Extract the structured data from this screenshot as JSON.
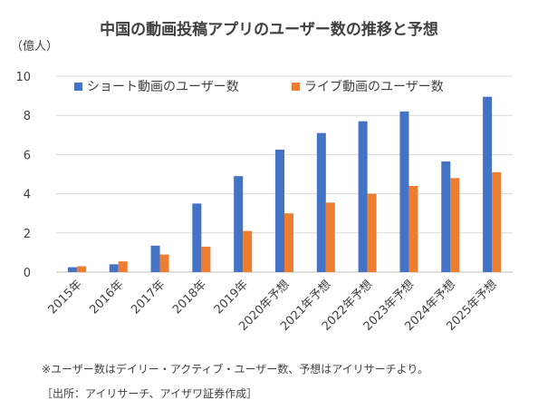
{
  "title": "中国の動画投稿アプリのユーザー数の推移と予想",
  "notes": {
    "definition": "※ユーザー数はデイリー・アクティブ・ユーザー数、予想はアイリサーチより。",
    "source": "［出所：アイリサーチ、アイザワ証券作成］"
  },
  "chart_data": {
    "type": "bar",
    "title": "中国の動画投稿アプリのユーザー数の推移と予想",
    "ylabel": "（億人）",
    "xlabel": "",
    "ylim": [
      0,
      10
    ],
    "yticks": [
      0,
      2,
      4,
      6,
      8,
      10
    ],
    "grid": true,
    "legend_position": "top",
    "categories": [
      "2015年",
      "2016年",
      "2017年",
      "2018年",
      "2019年",
      "2020年予想",
      "2021年予想",
      "2022年予想",
      "2023年予想",
      "2024年予想",
      "2025年予想"
    ],
    "series": [
      {
        "name": "ショート動画のユーザー数",
        "color": "#4472C4",
        "values": [
          0.25,
          0.4,
          1.35,
          3.5,
          4.9,
          6.25,
          7.1,
          7.7,
          8.2,
          5.65,
          8.95
        ]
      },
      {
        "name": "ライブ動画のユーザー数",
        "color": "#ED7D31",
        "values": [
          0.3,
          0.55,
          0.9,
          1.3,
          2.1,
          3.0,
          3.55,
          4.0,
          4.4,
          4.8,
          5.1
        ]
      }
    ]
  }
}
